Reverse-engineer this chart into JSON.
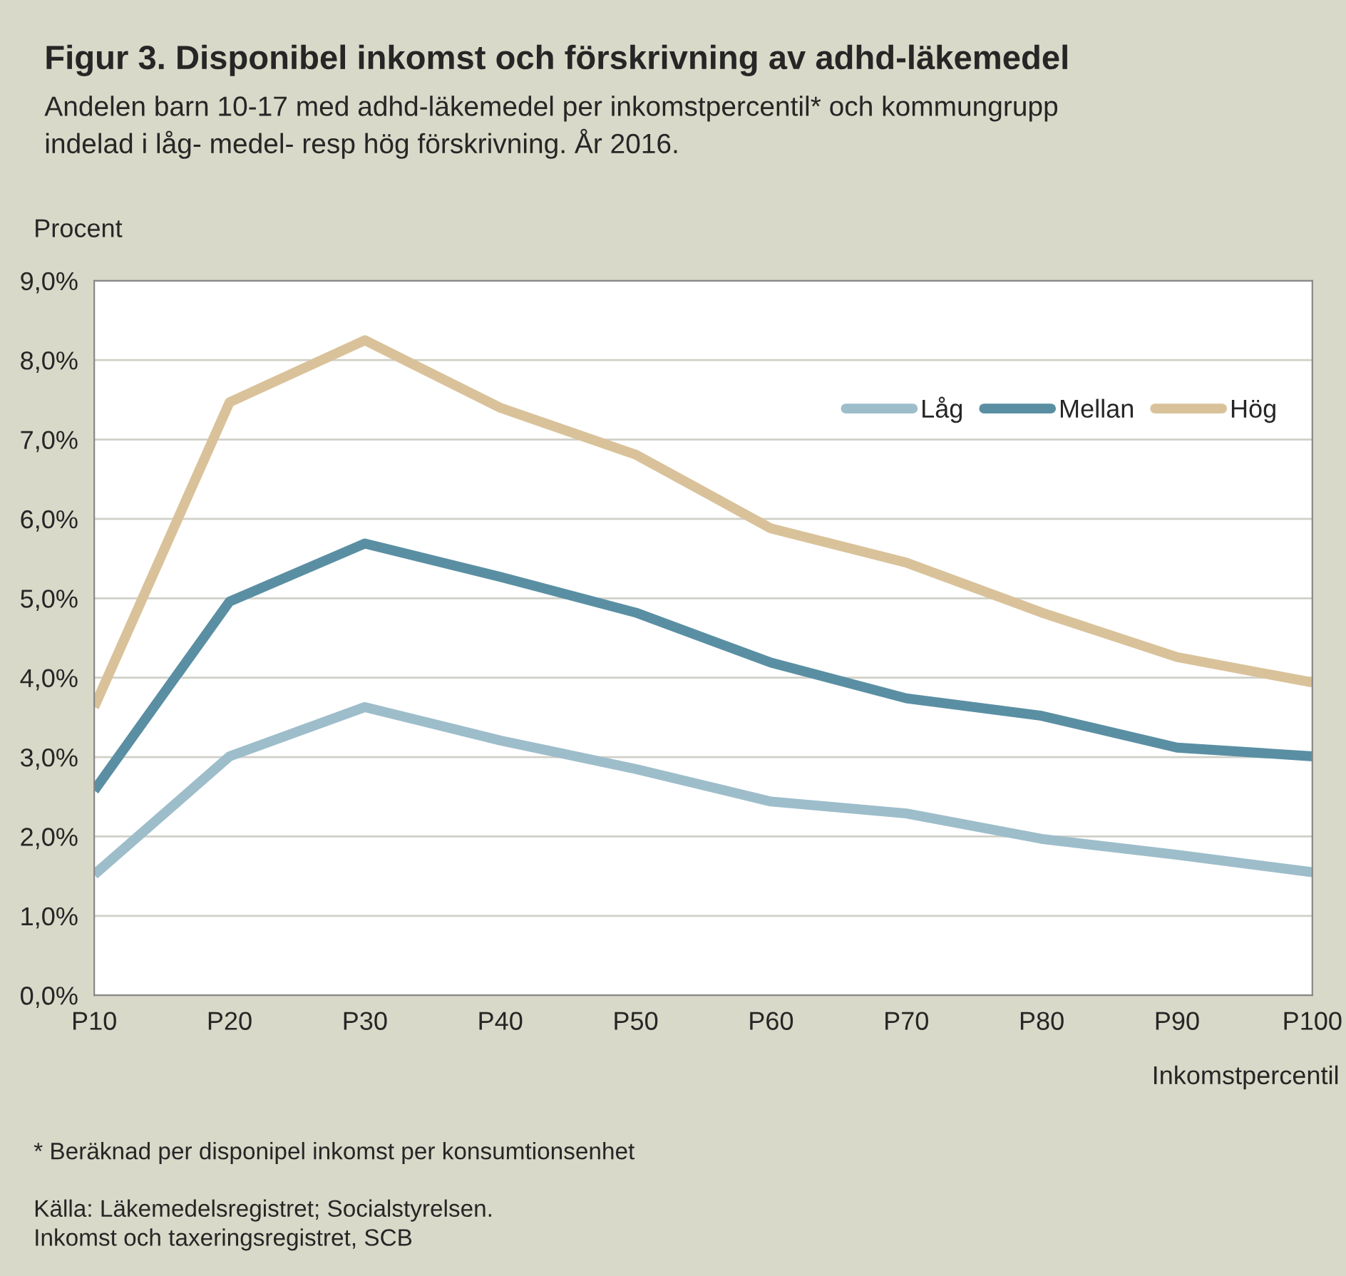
{
  "chart_data": {
    "type": "line",
    "title": "Figur 3. Disponibel inkomst och förskrivning av adhd-läkemedel",
    "subtitle": "Andelen barn 10-17 med adhd-läkemedel per inkomstpercentil* och kommungrupp\nindelad i låg- medel- resp hög förskrivning. År 2016.",
    "ylabel": "Procent",
    "xlabel": "Inkomstpercentil",
    "categories": [
      "P10",
      "P20",
      "P30",
      "P40",
      "P50",
      "P60",
      "P70",
      "P80",
      "P90",
      "P100"
    ],
    "series": [
      {
        "name": "Låg",
        "color": "#9dbdca",
        "values": [
          1.52,
          3.01,
          3.63,
          3.21,
          2.85,
          2.44,
          2.29,
          1.97,
          1.77,
          1.55
        ]
      },
      {
        "name": "Mellan",
        "color": "#5a8fa3",
        "values": [
          2.58,
          4.96,
          5.69,
          5.27,
          4.82,
          4.19,
          3.74,
          3.52,
          3.12,
          3.01
        ]
      },
      {
        "name": "Hög",
        "color": "#d9c29a",
        "values": [
          3.63,
          7.47,
          8.25,
          7.4,
          6.81,
          5.88,
          5.45,
          4.82,
          4.26,
          3.94
        ]
      }
    ],
    "ylim": [
      0,
      9
    ],
    "yticks": [
      {
        "value": 0,
        "label": "0,0%"
      },
      {
        "value": 1,
        "label": "1,0%"
      },
      {
        "value": 2,
        "label": "2,0%"
      },
      {
        "value": 3,
        "label": "3,0%"
      },
      {
        "value": 4,
        "label": "4,0%"
      },
      {
        "value": 5,
        "label": "5,0%"
      },
      {
        "value": 6,
        "label": "6,0%"
      },
      {
        "value": 7,
        "label": "7,0%"
      },
      {
        "value": 8,
        "label": "8,0%"
      },
      {
        "value": 9,
        "label": "9,0%"
      }
    ],
    "grid": "y",
    "legend": "top right",
    "marker": "none",
    "line_style": "solid",
    "annotations": [
      "* Beräknad per disponipel inkomst per konsumtionsenhet",
      "Källa: Läkemedelsregistret; Socialstyrelsen.\nInkomst och taxeringsregistret, SCB"
    ]
  }
}
